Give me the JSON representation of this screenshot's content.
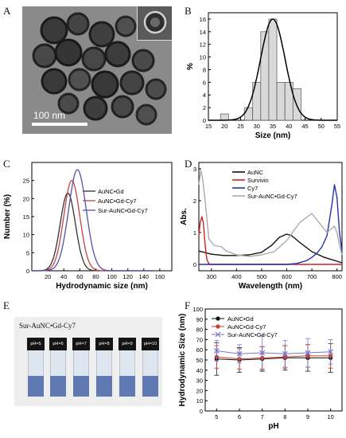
{
  "panel_letters": [
    "A",
    "B",
    "C",
    "D",
    "E",
    "F"
  ],
  "panelA": {
    "scale_label": "100 nm"
  },
  "panelE": {
    "title": "Sur-AuNC•Gd-Cy7",
    "vials": [
      {
        "label": "pH=5"
      },
      {
        "label": "pH=6"
      },
      {
        "label": "pH=7"
      },
      {
        "label": "pH=8"
      },
      {
        "label": "pH=9"
      },
      {
        "label": "pH=10"
      }
    ]
  },
  "chart_data": [
    {
      "panel": "B",
      "type": "bar",
      "xlabel": "Size (nm)",
      "ylabel": "%",
      "xlim": [
        15,
        55
      ],
      "ylim": [
        0,
        17
      ],
      "xticks": [
        15,
        20,
        25,
        30,
        35,
        40,
        45,
        50,
        55
      ],
      "yticks": [
        0,
        2,
        4,
        6,
        8,
        10,
        12,
        14,
        16
      ],
      "bars": {
        "bin_width": 2.5,
        "x": [
          20,
          27.5,
          30,
          32.5,
          35,
          37.5,
          40,
          42.5
        ],
        "values": [
          1,
          2,
          6,
          14,
          16,
          6,
          6,
          5
        ]
      },
      "fit": {
        "type": "gaussian",
        "mean": 35,
        "sigma": 3.8,
        "peak": 16
      }
    },
    {
      "panel": "C",
      "type": "line",
      "xlabel": "Hydrodynamic size (nm)",
      "ylabel": "Number (%)",
      "xlim": [
        0,
        175
      ],
      "ylim": [
        0,
        30
      ],
      "xticks": [
        20,
        40,
        60,
        80,
        100,
        120,
        140,
        160
      ],
      "yticks": [
        0,
        5,
        10,
        15,
        20,
        25
      ],
      "legend_position": "right",
      "series": [
        {
          "name": "AuNC•Gd",
          "color": "#333333",
          "mean": 45,
          "sigma": 9.5,
          "peak": 21.5
        },
        {
          "name": "AuNC•Gd-Cy7",
          "color": "#c84040",
          "mean": 50,
          "sigma": 10,
          "peak": 25
        },
        {
          "name": "Sur-AuNC•Gd-Cy7",
          "color": "#5550a8",
          "mean": 57,
          "sigma": 11,
          "peak": 28
        }
      ]
    },
    {
      "panel": "D",
      "type": "line",
      "xlabel": "Wavelength (nm)",
      "ylabel": "Abs.",
      "xlim": [
        250,
        820
      ],
      "ylim": [
        -0.2,
        3.2
      ],
      "xticks": [
        300,
        400,
        500,
        600,
        700,
        800
      ],
      "yticks": [
        0,
        1,
        2,
        3
      ],
      "legend_position": "top-right",
      "series": [
        {
          "name": "AuNC",
          "color": "#111111",
          "x": [
            250,
            300,
            350,
            400,
            450,
            500,
            540,
            570,
            600,
            620,
            650,
            700,
            750,
            800,
            820
          ],
          "y": [
            0.42,
            0.32,
            0.28,
            0.28,
            0.3,
            0.38,
            0.6,
            0.85,
            0.95,
            0.9,
            0.7,
            0.4,
            0.22,
            0.1,
            0.05
          ]
        },
        {
          "name": "Survivin",
          "color": "#cc2222",
          "x": [
            250,
            255,
            262,
            268,
            275,
            282,
            290,
            300,
            350,
            400,
            500,
            600,
            700,
            800,
            820
          ],
          "y": [
            0.9,
            1.3,
            1.5,
            1.3,
            0.6,
            0.15,
            0.02,
            0,
            0,
            0,
            0,
            0,
            0,
            0,
            0
          ]
        },
        {
          "name": "Cy7",
          "color": "#2233aa",
          "x": [
            250,
            300,
            400,
            500,
            600,
            640,
            680,
            700,
            720,
            740,
            760,
            780,
            790,
            800,
            810,
            820
          ],
          "y": [
            0,
            0,
            0,
            0,
            0,
            0.03,
            0.12,
            0.22,
            0.35,
            0.55,
            0.9,
            1.9,
            2.5,
            2.1,
            1.0,
            0.4
          ]
        },
        {
          "name": "Sur-AuNC•Gd-Cy7",
          "color": "#aaaaaa",
          "x": [
            250,
            258,
            265,
            275,
            290,
            310,
            340,
            360,
            400,
            450,
            500,
            550,
            600,
            650,
            700,
            730,
            760,
            790,
            800,
            810,
            820
          ],
          "y": [
            2.5,
            2.95,
            2.7,
            2.0,
            0.8,
            0.6,
            0.55,
            0.42,
            0.3,
            0.25,
            0.3,
            0.4,
            0.75,
            1.3,
            1.6,
            1.3,
            1.0,
            1.2,
            1.0,
            0.6,
            0.3
          ]
        }
      ]
    },
    {
      "panel": "F",
      "type": "line",
      "xlabel": "pH",
      "ylabel": "Hydrodynamic Size (nm)",
      "xlim": [
        4.5,
        10.5
      ],
      "ylim": [
        0,
        100
      ],
      "xticks": [
        5,
        6,
        7,
        8,
        9,
        10
      ],
      "yticks": [
        0,
        10,
        20,
        30,
        40,
        50,
        60,
        70,
        80,
        90,
        100
      ],
      "legend_position": "top-left",
      "series": [
        {
          "name": "AuNC•Gd",
          "color": "#111111",
          "marker": "circle",
          "x": [
            5,
            6,
            7,
            8,
            9,
            10
          ],
          "y": [
            51,
            50,
            51,
            52,
            52,
            52
          ],
          "err": [
            16,
            12,
            12,
            12,
            13,
            14
          ]
        },
        {
          "name": "AuNC•Gd-Cy7",
          "color": "#cc3a2a",
          "marker": "circle",
          "x": [
            5,
            6,
            7,
            8,
            9,
            10
          ],
          "y": [
            53,
            51,
            52,
            53,
            54,
            54
          ],
          "err": [
            11,
            10,
            11,
            11,
            11,
            12
          ]
        },
        {
          "name": "Sur-AuNC•Gd-Cy7",
          "color": "#7777cc",
          "marker": "x",
          "x": [
            5,
            6,
            7,
            8,
            9,
            10
          ],
          "y": [
            59,
            56,
            57,
            56,
            57,
            58
          ],
          "err": [
            10,
            9,
            17,
            13,
            14,
            12
          ]
        }
      ]
    }
  ]
}
